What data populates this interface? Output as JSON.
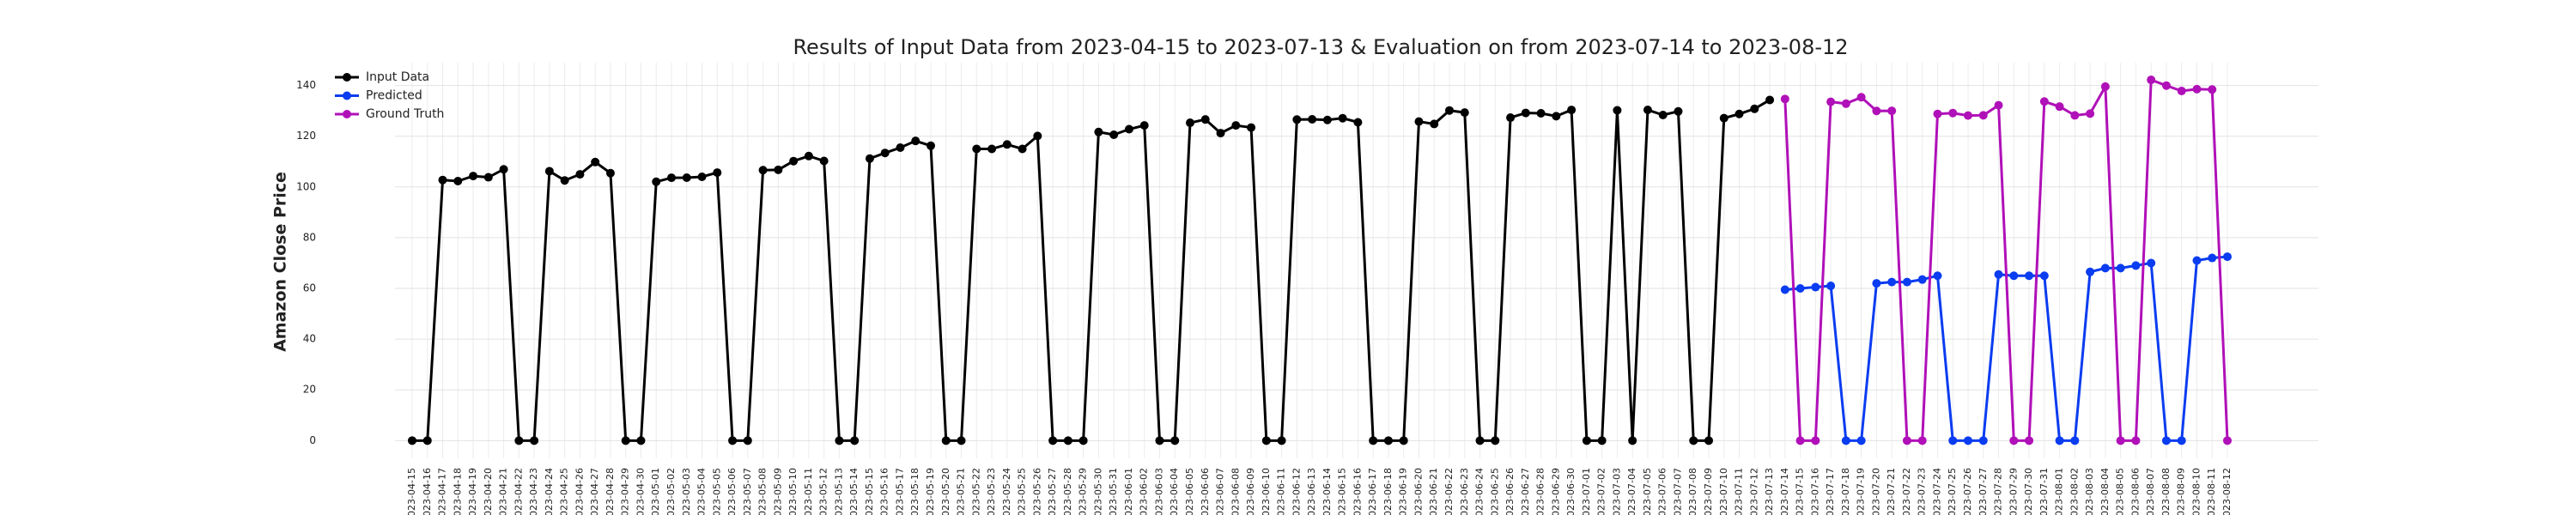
{
  "chart_data": {
    "type": "line",
    "title": "Results of Input Data from 2023-04-15 to 2023-07-13 & Evaluation on from 2023-07-14 to 2023-08-12",
    "y_label": "Amazon Close Price",
    "categories": [
      "2023-04-15",
      "2023-04-16",
      "2023-04-17",
      "2023-04-18",
      "2023-04-19",
      "2023-04-20",
      "2023-04-21",
      "2023-04-22",
      "2023-04-23",
      "2023-04-24",
      "2023-04-25",
      "2023-04-26",
      "2023-04-27",
      "2023-04-28",
      "2023-04-29",
      "2023-04-30",
      "2023-05-01",
      "2023-05-02",
      "2023-05-03",
      "2023-05-04",
      "2023-05-05",
      "2023-05-06",
      "2023-05-07",
      "2023-05-08",
      "2023-05-09",
      "2023-05-10",
      "2023-05-11",
      "2023-05-12",
      "2023-05-13",
      "2023-05-14",
      "2023-05-15",
      "2023-05-16",
      "2023-05-17",
      "2023-05-18",
      "2023-05-19",
      "2023-05-20",
      "2023-05-21",
      "2023-05-22",
      "2023-05-23",
      "2023-05-24",
      "2023-05-25",
      "2023-05-26",
      "2023-05-27",
      "2023-05-28",
      "2023-05-29",
      "2023-05-30",
      "2023-05-31",
      "2023-06-01",
      "2023-06-02",
      "2023-06-03",
      "2023-06-04",
      "2023-06-05",
      "2023-06-06",
      "2023-06-07",
      "2023-06-08",
      "2023-06-09",
      "2023-06-10",
      "2023-06-11",
      "2023-06-12",
      "2023-06-13",
      "2023-06-14",
      "2023-06-15",
      "2023-06-16",
      "2023-06-17",
      "2023-06-18",
      "2023-06-19",
      "2023-06-20",
      "2023-06-21",
      "2023-06-22",
      "2023-06-23",
      "2023-06-24",
      "2023-06-25",
      "2023-06-26",
      "2023-06-27",
      "2023-06-28",
      "2023-06-29",
      "2023-06-30",
      "2023-07-01",
      "2023-07-02",
      "2023-07-03",
      "2023-07-04",
      "2023-07-05",
      "2023-07-06",
      "2023-07-07",
      "2023-07-08",
      "2023-07-09",
      "2023-07-10",
      "2023-07-11",
      "2023-07-12",
      "2023-07-13",
      "2023-07-14",
      "2023-07-15",
      "2023-07-16",
      "2023-07-17",
      "2023-07-18",
      "2023-07-19",
      "2023-07-20",
      "2023-07-21",
      "2023-07-22",
      "2023-07-23",
      "2023-07-24",
      "2023-07-25",
      "2023-07-26",
      "2023-07-27",
      "2023-07-28",
      "2023-07-29",
      "2023-07-30",
      "2023-07-31",
      "2023-08-01",
      "2023-08-02",
      "2023-08-03",
      "2023-08-04",
      "2023-08-05",
      "2023-08-06",
      "2023-08-07",
      "2023-08-08",
      "2023-08-09",
      "2023-08-10",
      "2023-08-11",
      "2023-08-12"
    ],
    "series": [
      {
        "name": "Input Data",
        "color": "#000000",
        "values": [
          0,
          0,
          102.74,
          102.3,
          104.3,
          103.81,
          106.96,
          0,
          0,
          106.21,
          102.57,
          104.98,
          109.82,
          105.45,
          0,
          0,
          102.05,
          103.63,
          103.65,
          104.0,
          105.66,
          0,
          0,
          106.62,
          106.76,
          110.19,
          112.18,
          110.26,
          0,
          0,
          111.2,
          113.4,
          115.5,
          118.15,
          116.25,
          0,
          0,
          115.01,
          114.99,
          116.75,
          115.0,
          120.11,
          0,
          0,
          0,
          121.66,
          120.58,
          122.77,
          124.25,
          0,
          0,
          125.3,
          126.61,
          121.23,
          124.25,
          123.43,
          0,
          0,
          126.57,
          126.66,
          126.42,
          127.11,
          125.49,
          0,
          0,
          0,
          125.78,
          124.83,
          130.15,
          129.33,
          0,
          0,
          127.33,
          129.18,
          129.04,
          127.9,
          130.36,
          0,
          0,
          130.22,
          0,
          130.38,
          128.36,
          129.78,
          0,
          0,
          127.13,
          128.78,
          130.8,
          134.3,
          null,
          null,
          null,
          null,
          null,
          null,
          null,
          null,
          null,
          null,
          null,
          null,
          null,
          null,
          null,
          null,
          null,
          null,
          null,
          null,
          null,
          null,
          null,
          null,
          null,
          null,
          null,
          null,
          null,
          null
        ]
      },
      {
        "name": "Predicted",
        "color": "#0a3cf0",
        "values": [
          null,
          null,
          null,
          null,
          null,
          null,
          null,
          null,
          null,
          null,
          null,
          null,
          null,
          null,
          null,
          null,
          null,
          null,
          null,
          null,
          null,
          null,
          null,
          null,
          null,
          null,
          null,
          null,
          null,
          null,
          null,
          null,
          null,
          null,
          null,
          null,
          null,
          null,
          null,
          null,
          null,
          null,
          null,
          null,
          null,
          null,
          null,
          null,
          null,
          null,
          null,
          null,
          null,
          null,
          null,
          null,
          null,
          null,
          null,
          null,
          null,
          null,
          null,
          null,
          null,
          null,
          null,
          null,
          null,
          null,
          null,
          null,
          null,
          null,
          null,
          null,
          null,
          null,
          null,
          null,
          null,
          null,
          null,
          null,
          null,
          null,
          null,
          null,
          null,
          null,
          59.5,
          60,
          60.5,
          61,
          0,
          0,
          62,
          62.5,
          62.5,
          63.5,
          65,
          0,
          0,
          0,
          65.5,
          65,
          65,
          65,
          0,
          0,
          66.5,
          68,
          68,
          69,
          70,
          0,
          0,
          71,
          72,
          72.5
        ]
      },
      {
        "name": "Ground Truth",
        "color": "#b010b8",
        "values": [
          null,
          null,
          null,
          null,
          null,
          null,
          null,
          null,
          null,
          null,
          null,
          null,
          null,
          null,
          null,
          null,
          null,
          null,
          null,
          null,
          null,
          null,
          null,
          null,
          null,
          null,
          null,
          null,
          null,
          null,
          null,
          null,
          null,
          null,
          null,
          null,
          null,
          null,
          null,
          null,
          null,
          null,
          null,
          null,
          null,
          null,
          null,
          null,
          null,
          null,
          null,
          null,
          null,
          null,
          null,
          null,
          null,
          null,
          null,
          null,
          null,
          null,
          null,
          null,
          null,
          null,
          null,
          null,
          null,
          null,
          null,
          null,
          null,
          null,
          null,
          null,
          null,
          null,
          null,
          null,
          null,
          null,
          null,
          null,
          null,
          null,
          null,
          null,
          null,
          null,
          134.68,
          0,
          0,
          133.56,
          132.83,
          135.36,
          129.96,
          130.0,
          0,
          0,
          128.8,
          129.13,
          128.15,
          128.25,
          132.21,
          0,
          0,
          133.68,
          131.69,
          128.21,
          128.91,
          139.57,
          0,
          0,
          142.22,
          139.94,
          137.85,
          138.56,
          138.41,
          0
        ]
      }
    ],
    "ylim": [
      -7,
      149
    ],
    "yticks": [
      0,
      20,
      40,
      60,
      80,
      100,
      120,
      140
    ],
    "grid": true,
    "legend": "upper left"
  }
}
